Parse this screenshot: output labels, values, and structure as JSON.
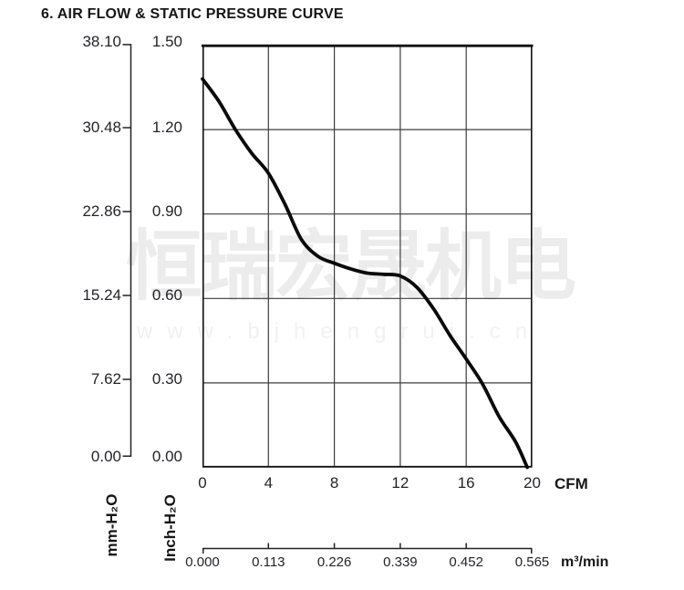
{
  "header": {
    "title": "6. AIR FLOW & STATIC PRESSURE CURVE"
  },
  "watermark": {
    "cjk_text": "恒瑞宏晟机电",
    "url_text": "www.bjhengrui.cn"
  },
  "chart_data": {
    "type": "line",
    "title": "AIR FLOW & STATIC PRESSURE CURVE",
    "grid": true,
    "curve_color": "#0a0a0a",
    "axes": {
      "left_mm": {
        "label": "mm-H₂O",
        "ticks": [
          "38.10",
          "30.48",
          "22.86",
          "15.24",
          "7.62",
          "0.00"
        ],
        "range": [
          0,
          38.1
        ]
      },
      "left_inch": {
        "label": "Inch-H₂O",
        "ticks": [
          "1.50",
          "1.20",
          "0.90",
          "0.60",
          "0.30",
          "0.00"
        ],
        "range": [
          0,
          1.5
        ]
      },
      "bottom_cfm": {
        "label": "CFM",
        "ticks": [
          "0",
          "4",
          "8",
          "12",
          "16",
          "20"
        ],
        "range": [
          0,
          20
        ]
      },
      "bottom_m3min": {
        "label": "m³/min",
        "ticks": [
          "0.000",
          "0.113",
          "0.226",
          "0.339",
          "0.452",
          "0.565"
        ],
        "range": [
          0,
          0.565
        ]
      }
    },
    "series": [
      {
        "name": "static-pressure-curve",
        "x_unit": "CFM",
        "y_unit": "Inch-H₂O",
        "points": [
          [
            0,
            1.38
          ],
          [
            1,
            1.3
          ],
          [
            2,
            1.2
          ],
          [
            3,
            1.115
          ],
          [
            4,
            1.045
          ],
          [
            5,
            0.935
          ],
          [
            6,
            0.81
          ],
          [
            7,
            0.75
          ],
          [
            8,
            0.725
          ],
          [
            9,
            0.705
          ],
          [
            10,
            0.69
          ],
          [
            11,
            0.686
          ],
          [
            12,
            0.68
          ],
          [
            13,
            0.64
          ],
          [
            14,
            0.565
          ],
          [
            15,
            0.47
          ],
          [
            16,
            0.385
          ],
          [
            17,
            0.295
          ],
          [
            18,
            0.18
          ],
          [
            19,
            0.09
          ],
          [
            19.7,
            0.0
          ]
        ]
      }
    ]
  }
}
